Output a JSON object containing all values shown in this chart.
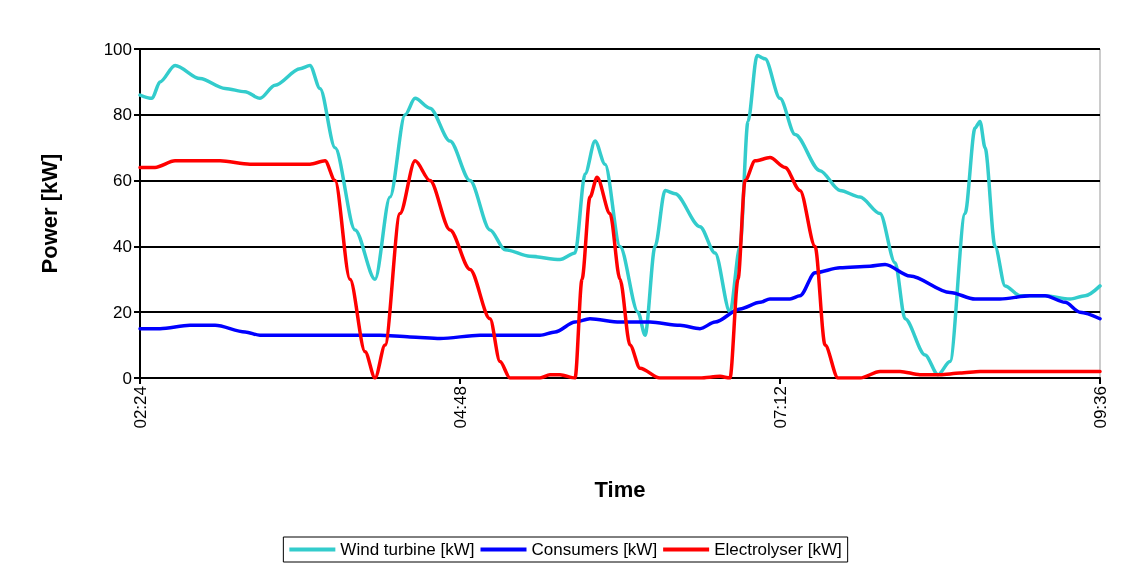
{
  "chart_data": {
    "type": "line",
    "xlabel": "Time",
    "ylabel": "Power [kW]",
    "xlim": [
      2.4,
      9.6
    ],
    "xticks": [
      {
        "value": 2.4,
        "label": "02:24"
      },
      {
        "value": 4.8,
        "label": "04:48"
      },
      {
        "value": 7.2,
        "label": "07:12"
      },
      {
        "value": 9.6,
        "label": "09:36"
      }
    ],
    "ylim": [
      0,
      100
    ],
    "yticks": [
      0,
      20,
      40,
      60,
      80,
      100
    ],
    "grid": "y",
    "legend": "bottom",
    "marker": "none",
    "line_style": "solid",
    "series": [
      {
        "name": "Wind turbine [kW]",
        "color": "#33cccc",
        "x": [
          2.4,
          2.49,
          2.55,
          2.663,
          2.85,
          3.038,
          3.188,
          3.3,
          3.413,
          3.6,
          3.675,
          3.75,
          3.863,
          4.013,
          4.163,
          4.275,
          4.388,
          4.463,
          4.575,
          4.725,
          4.875,
          5.025,
          5.138,
          5.325,
          5.55,
          5.663,
          5.738,
          5.813,
          5.888,
          6.0,
          6.135,
          6.188,
          6.263,
          6.338,
          6.413,
          6.6,
          6.713,
          6.825,
          6.9,
          6.96,
          7.028,
          7.088,
          7.2,
          7.313,
          7.5,
          7.65,
          7.8,
          7.95,
          8.063,
          8.138,
          8.288,
          8.385,
          8.475,
          8.588,
          8.663,
          8.7,
          8.738,
          8.813,
          8.888,
          9.0,
          9.188,
          9.375,
          9.488,
          9.6
        ],
        "values": [
          86,
          85,
          90,
          95,
          91,
          88,
          87,
          85,
          89,
          94,
          95,
          88,
          70,
          45,
          30,
          55,
          80,
          85,
          82,
          72,
          60,
          45,
          39,
          37,
          36,
          38,
          62,
          72,
          65,
          40,
          20,
          13,
          40,
          57,
          56,
          46,
          38,
          20,
          40,
          78,
          98,
          97,
          85,
          74,
          63,
          57,
          55,
          50,
          35,
          18,
          7,
          1,
          5,
          50,
          76,
          78,
          70,
          40,
          28,
          25,
          25,
          24,
          25,
          28
        ]
      },
      {
        "name": "Consumers [kW]",
        "color": "#0000ff",
        "x": [
          2.4,
          2.55,
          2.775,
          2.963,
          3.188,
          3.3,
          3.825,
          4.2,
          4.425,
          4.65,
          4.95,
          5.4,
          5.513,
          5.663,
          5.775,
          6.0,
          6.225,
          6.45,
          6.6,
          6.713,
          6.9,
          7.05,
          7.125,
          7.275,
          7.35,
          7.463,
          7.65,
          7.875,
          7.988,
          8.175,
          8.475,
          8.663,
          8.85,
          9.075,
          9.188,
          9.338,
          9.45,
          9.6
        ],
        "values": [
          15,
          15,
          16,
          16,
          14,
          13,
          13,
          13,
          12.5,
          12,
          13,
          13,
          14,
          17,
          18,
          17,
          17,
          16,
          15,
          17,
          21,
          23,
          24,
          24,
          25,
          32,
          33.5,
          34,
          34.5,
          31,
          26,
          24,
          24,
          25,
          25,
          23,
          20,
          18
        ]
      },
      {
        "name": "Electrolyser [kW]",
        "color": "#ff0000",
        "x": [
          2.4,
          2.513,
          2.663,
          3.0,
          3.225,
          3.675,
          3.788,
          3.863,
          3.975,
          4.088,
          4.163,
          4.238,
          4.35,
          4.463,
          4.575,
          4.725,
          4.875,
          5.025,
          5.1,
          5.175,
          5.4,
          5.475,
          5.55,
          5.663,
          5.715,
          5.775,
          5.828,
          5.925,
          6.0,
          6.075,
          6.15,
          6.3,
          6.6,
          6.75,
          6.825,
          6.885,
          6.938,
          7.013,
          7.125,
          7.238,
          7.35,
          7.463,
          7.538,
          7.635,
          7.8,
          7.95,
          8.1,
          8.25,
          8.4,
          8.55,
          8.7,
          9.6
        ],
        "values": [
          64,
          64,
          66,
          66,
          65,
          65,
          66,
          60,
          30,
          8,
          0,
          10,
          50,
          66,
          60,
          45,
          33,
          18,
          5,
          0,
          0,
          1,
          1,
          0,
          30,
          55,
          61,
          50,
          30,
          10,
          3,
          0,
          0,
          0.5,
          0,
          30,
          60,
          66,
          67,
          64,
          57,
          40,
          10,
          0,
          0,
          2,
          2,
          1,
          1,
          1.5,
          2,
          2
        ]
      }
    ]
  }
}
